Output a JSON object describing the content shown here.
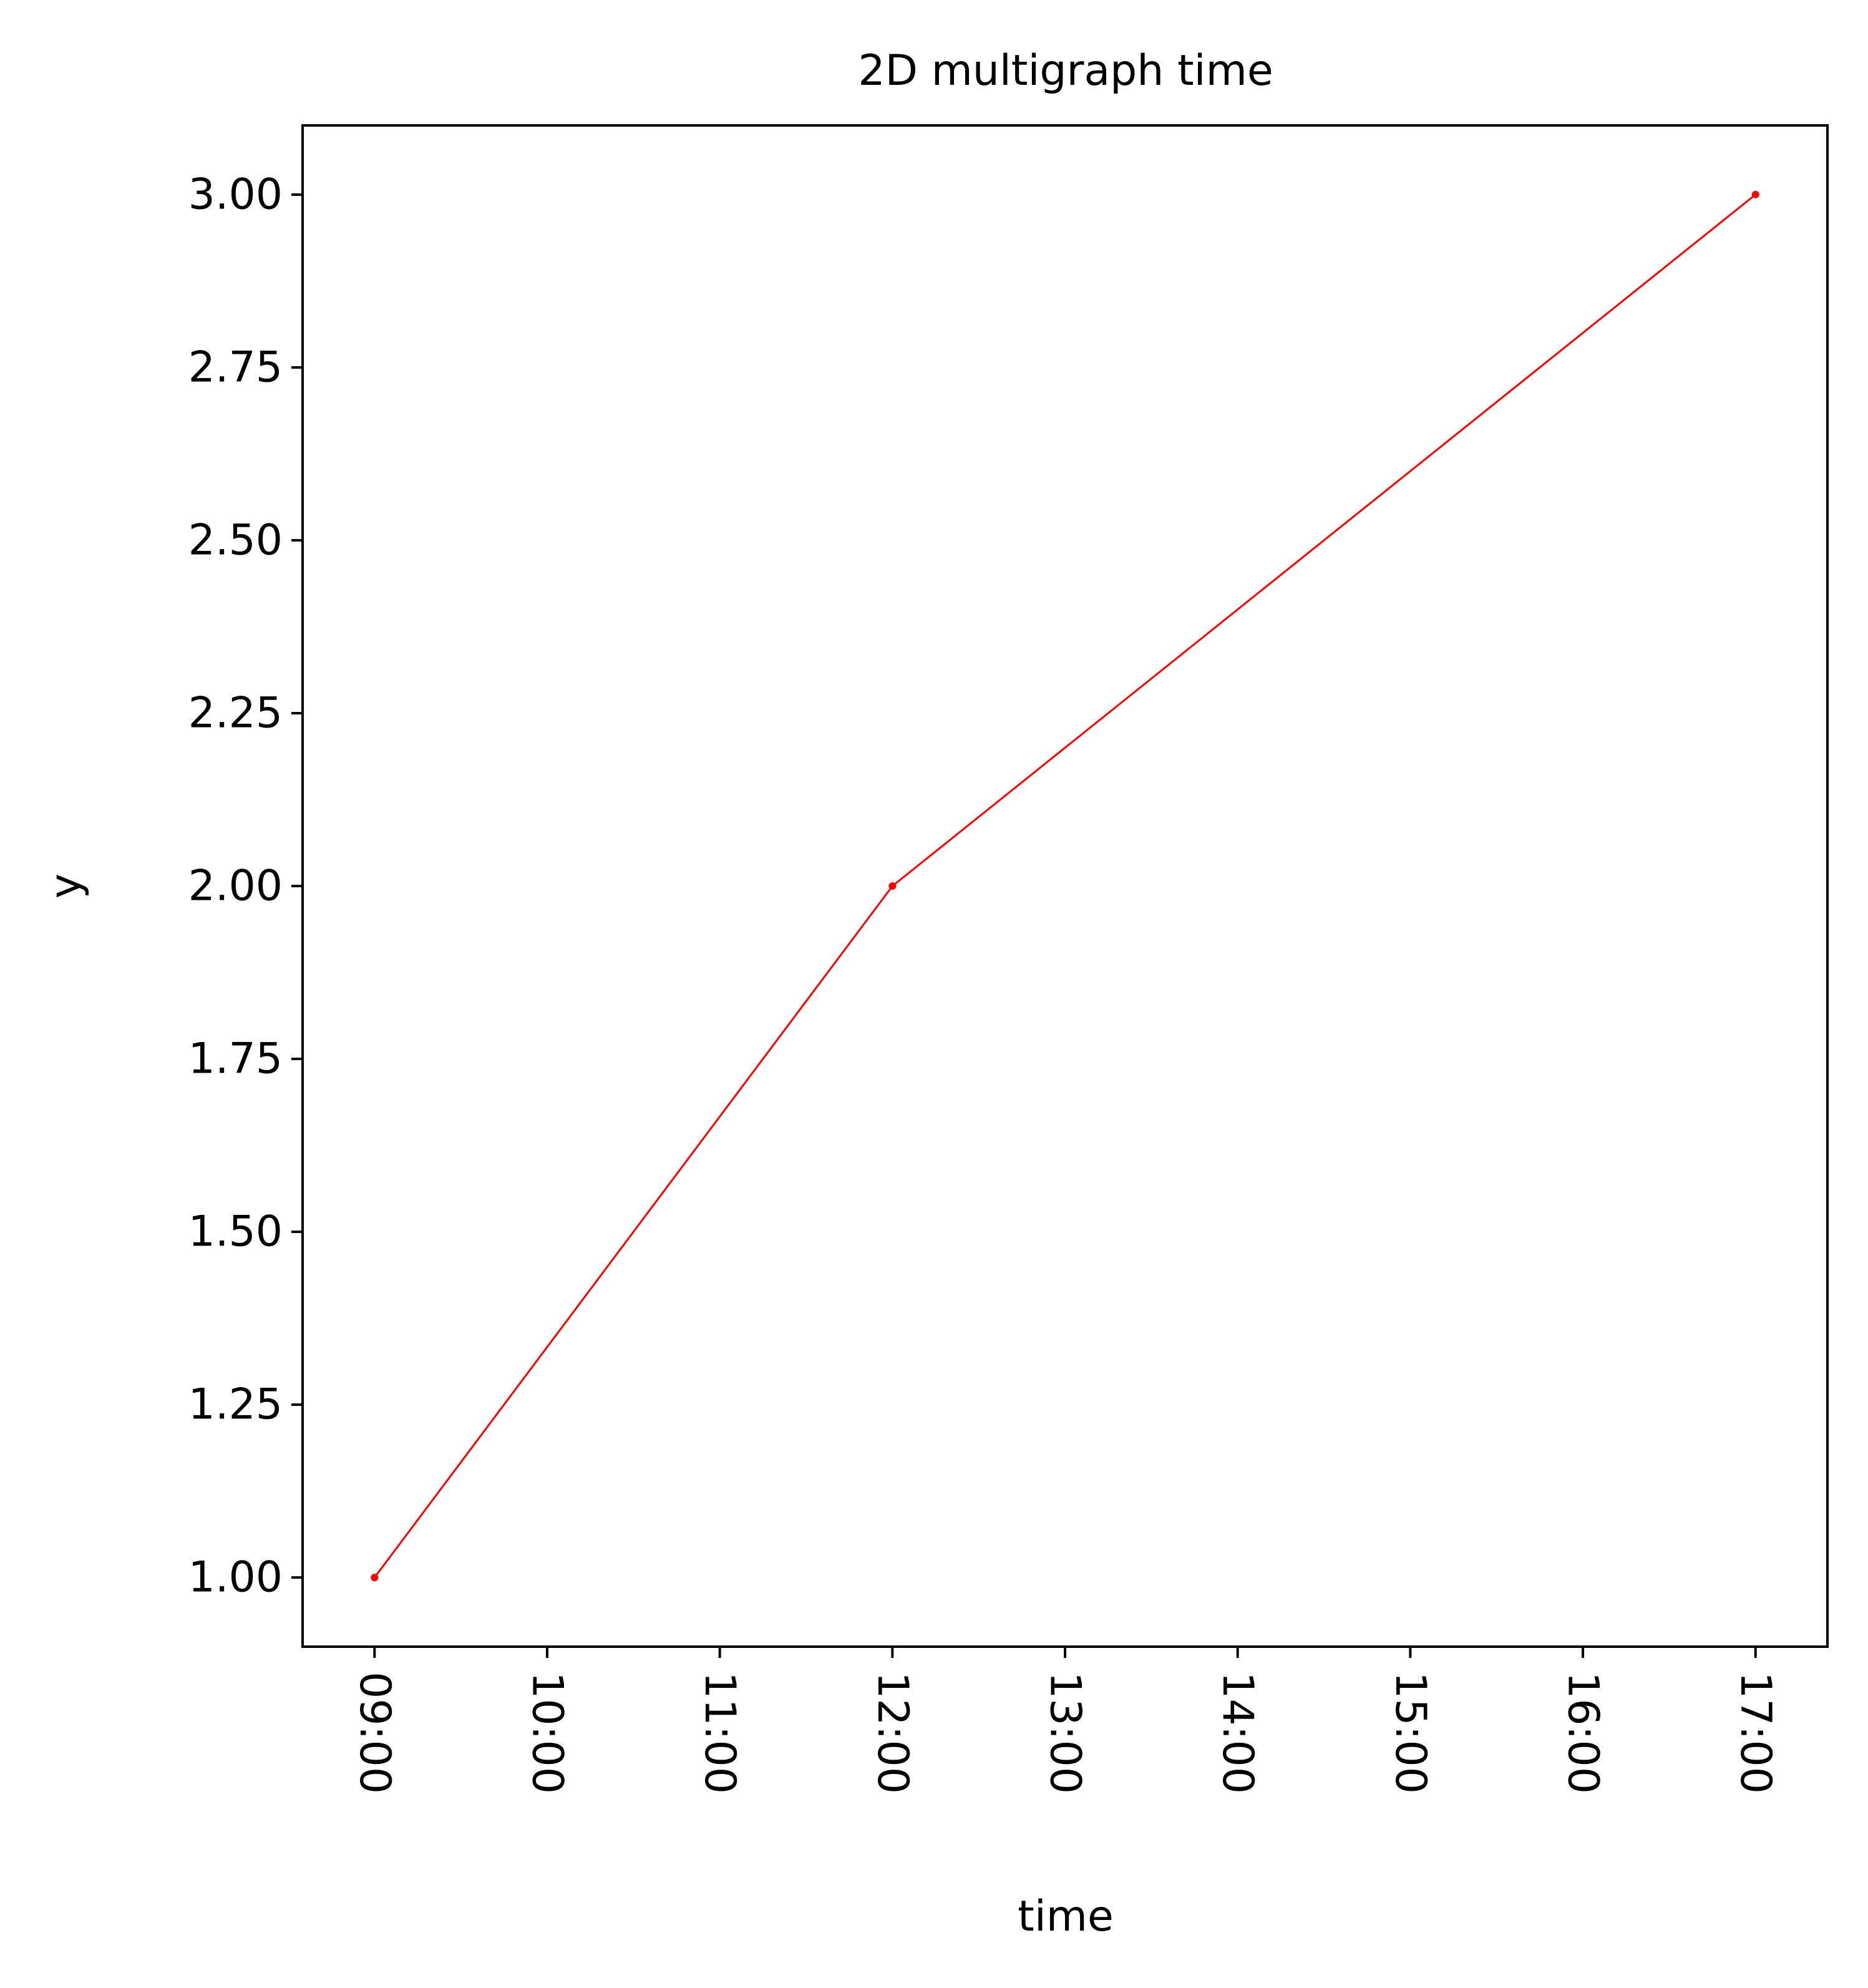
{
  "chart_data": {
    "type": "line",
    "title": "2D multigraph time",
    "xlabel": "time",
    "ylabel": "y",
    "x_ticks": [
      "09:00",
      "10:00",
      "11:00",
      "12:00",
      "13:00",
      "14:00",
      "15:00",
      "16:00",
      "17:00"
    ],
    "y_ticks": [
      "1.00",
      "1.25",
      "1.50",
      "1.75",
      "2.00",
      "2.25",
      "2.50",
      "2.75",
      "3.00"
    ],
    "xlim": [
      "08:35",
      "17:25"
    ],
    "ylim": [
      0.9,
      3.1
    ],
    "grid": false,
    "series": [
      {
        "color": "#ff0000",
        "marker": "point",
        "points": [
          {
            "x": "09:00",
            "y": 1
          },
          {
            "x": "12:00",
            "y": 2
          },
          {
            "x": "17:00",
            "y": 3
          }
        ]
      }
    ]
  }
}
